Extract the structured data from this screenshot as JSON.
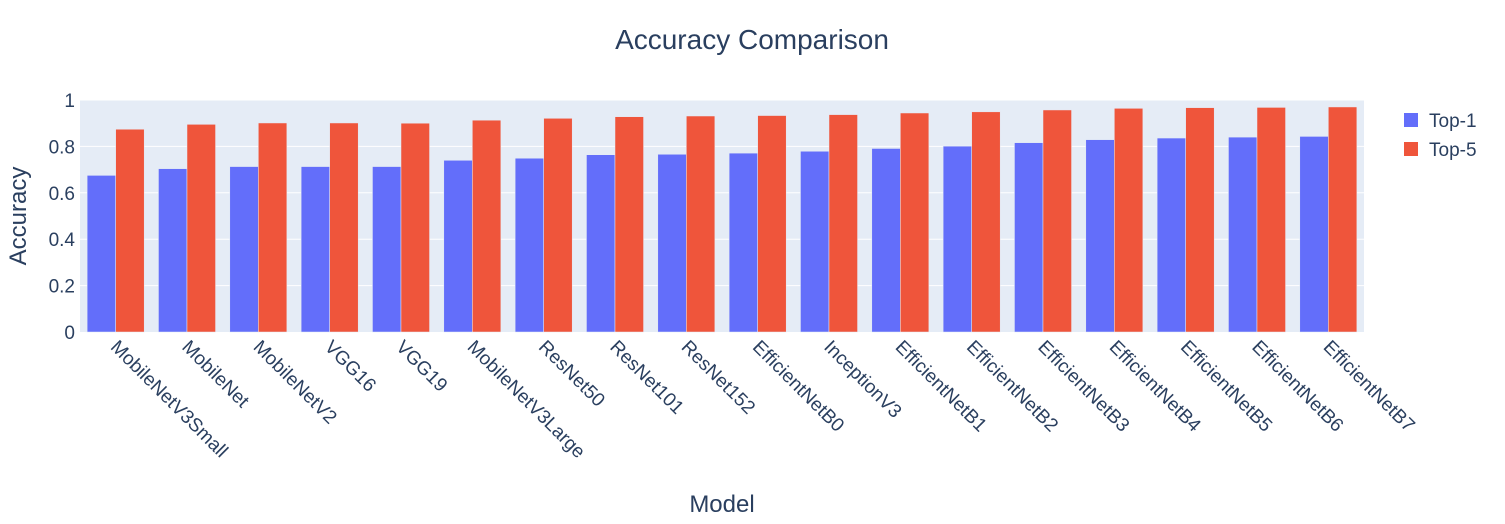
{
  "chart_data": {
    "type": "bar",
    "title": "Accuracy Comparison",
    "xlabel": "Model",
    "ylabel": "Accuracy",
    "ylim": [
      0,
      1.0
    ],
    "yticks": [
      0,
      0.2,
      0.4,
      0.6,
      0.8,
      1
    ],
    "ytick_labels": [
      "0",
      "0.2",
      "0.4",
      "0.6",
      "0.8",
      "1"
    ],
    "grid": true,
    "legend_position": "top-right",
    "categories": [
      "MobileNetV3Small",
      "MobileNet",
      "MobileNetV2",
      "VGG16",
      "VGG19",
      "MobileNetV3Large",
      "ResNet50",
      "ResNet101",
      "ResNet152",
      "EfficientNetB0",
      "InceptionV3",
      "EfficientNetB1",
      "EfficientNetB2",
      "EfficientNetB3",
      "EfficientNetB4",
      "EfficientNetB5",
      "EfficientNetB6",
      "EfficientNetB7"
    ],
    "series": [
      {
        "name": "Top-1",
        "color": "#636efa",
        "values": [
          0.675,
          0.704,
          0.713,
          0.713,
          0.713,
          0.74,
          0.749,
          0.764,
          0.766,
          0.771,
          0.779,
          0.791,
          0.801,
          0.816,
          0.829,
          0.836,
          0.84,
          0.843
        ]
      },
      {
        "name": "Top-5",
        "color": "#ef553b",
        "values": [
          0.874,
          0.895,
          0.901,
          0.901,
          0.9,
          0.913,
          0.921,
          0.928,
          0.931,
          0.933,
          0.937,
          0.944,
          0.949,
          0.957,
          0.964,
          0.967,
          0.968,
          0.97
        ]
      }
    ]
  }
}
